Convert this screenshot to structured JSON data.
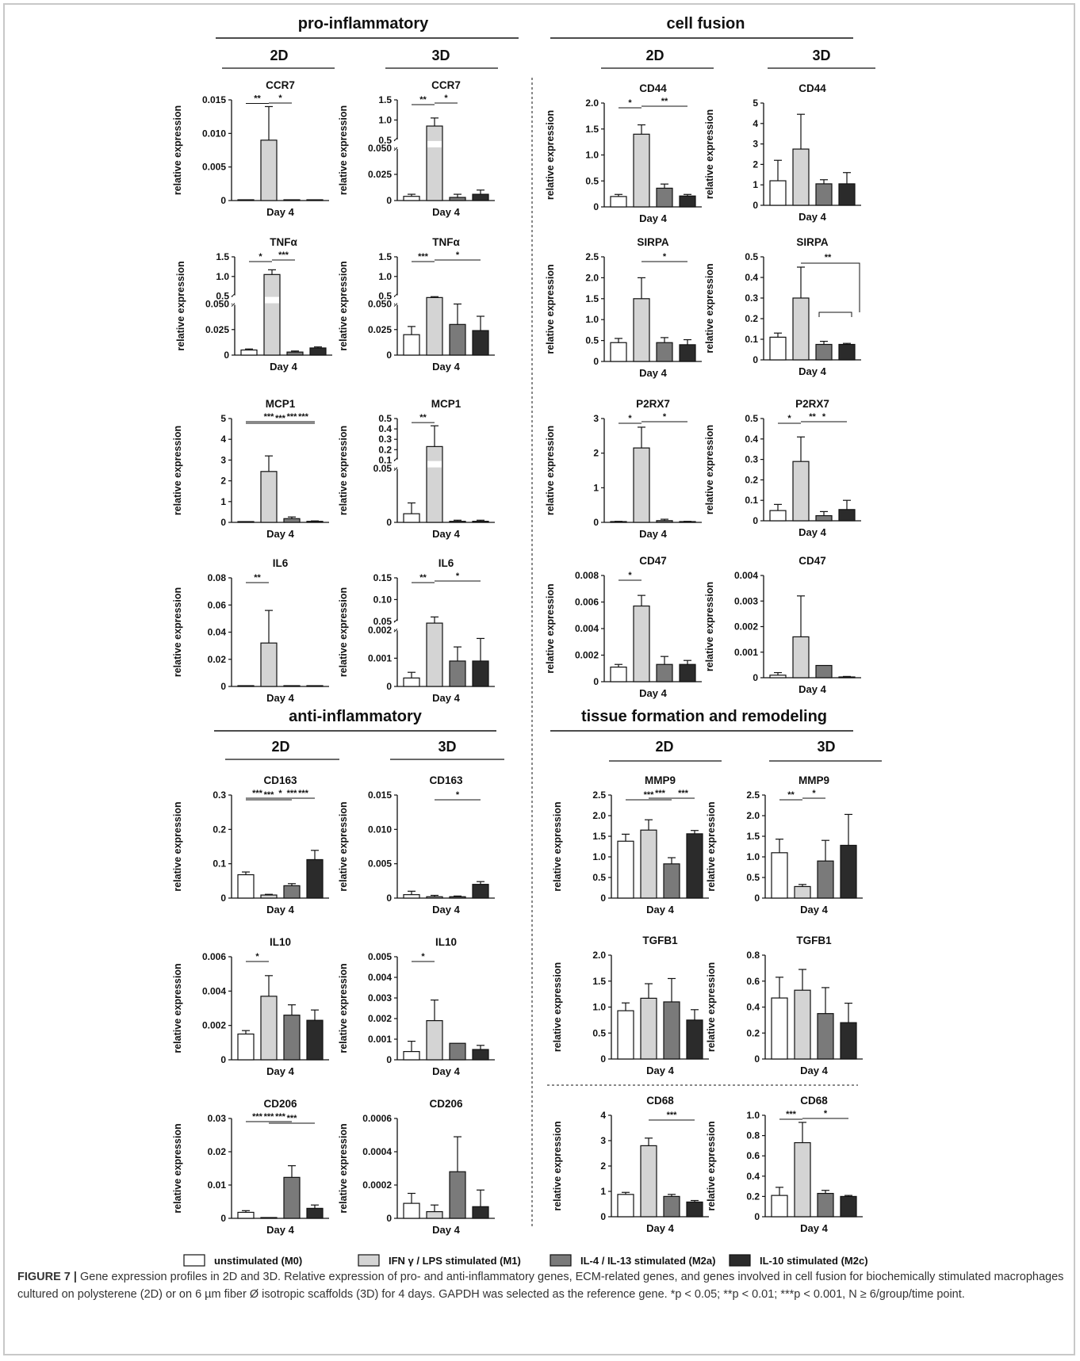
{
  "figure": {
    "colors": {
      "M0": "#ffffff",
      "M1": "#d4d4d4",
      "M2a": "#7a7a7a",
      "M2c": "#2b2b2b",
      "ink": "#111111"
    },
    "sections": [
      {
        "title": "pro-inflammatory",
        "subs": [
          "2D",
          "3D"
        ]
      },
      {
        "title": "cell fusion",
        "subs": [
          "2D",
          "3D"
        ]
      },
      {
        "title": "anti-inflammatory",
        "subs": [
          "2D",
          "3D"
        ]
      },
      {
        "title": "tissue formation and remodeling",
        "subs": [
          "2D",
          "3D"
        ]
      }
    ],
    "legend": [
      {
        "key": "M0",
        "label": "unstimulated (M0)"
      },
      {
        "key": "M1",
        "label": "IFN  γ / LPS stimulated (M1)"
      },
      {
        "key": "M2a",
        "label": "IL-4 / IL-13 stimulated (M2a)"
      },
      {
        "key": "M2c",
        "label": "IL-10 stimulated (M2c)"
      }
    ],
    "caption": {
      "label": "FIGURE 7 |",
      "text": " Gene expression profiles in 2D and 3D. Relative expression of pro- and anti-inflammatory genes, ECM-related genes, and genes involved in cell fusion for biochemically stimulated macrophages cultured on polysterene (2D) or on 6 µm fiber Ø isotropic scaffolds (3D) for 4 days. GAPDH was selected as the reference gene. *p < 0.05; **p < 0.01; ***p < 0.001, N ≥ 6/group/time point."
    }
  },
  "chart_data": [
    {
      "type": "bar",
      "title": "CCR7",
      "section": "pro-inflammatory",
      "culture": "2D",
      "xlabel": "Day 4",
      "ylabel": "relative expression",
      "yticks": [
        "0",
        "0.005",
        "0.010",
        "0.015"
      ],
      "ylim": [
        0,
        0.015
      ],
      "values": [
        0,
        0.009,
        0,
        0
      ],
      "errors": [
        0,
        0.005,
        0,
        0
      ],
      "sig": [
        {
          "a": 0,
          "b": 1,
          "label": "**"
        },
        {
          "a": 1,
          "b": 2,
          "label": "*"
        }
      ]
    },
    {
      "type": "bar",
      "title": "CCR7",
      "section": "pro-inflammatory",
      "culture": "3D",
      "xlabel": "Day 4",
      "ylabel": "relative expression",
      "yticks": [
        "0",
        "0.025",
        "0.050",
        "0.5",
        "1.0",
        "1.5"
      ],
      "broken": true,
      "values": [
        0.004,
        0.85,
        0.003,
        0.006
      ],
      "errors": [
        0.002,
        0.2,
        0.003,
        0.004
      ],
      "sig": [
        {
          "a": 0,
          "b": 1,
          "label": "**"
        },
        {
          "a": 1,
          "b": 2,
          "label": "*"
        }
      ]
    },
    {
      "type": "bar",
      "title": "CD44",
      "section": "cell fusion",
      "culture": "2D",
      "xlabel": "Day 4",
      "ylabel": "relative expression",
      "yticks": [
        "0",
        "0.5",
        "1.0",
        "1.5",
        "2.0"
      ],
      "ylim": [
        0,
        2.0
      ],
      "values": [
        0.2,
        1.4,
        0.36,
        0.21
      ],
      "errors": [
        0.04,
        0.18,
        0.08,
        0.03
      ],
      "sig": [
        {
          "a": 0,
          "b": 1,
          "label": "*"
        },
        {
          "a": 1,
          "b": 3,
          "label": "**"
        }
      ]
    },
    {
      "type": "bar",
      "title": "CD44",
      "section": "cell fusion",
      "culture": "3D",
      "xlabel": "Day 4",
      "ylabel": "relative expression",
      "yticks": [
        "0",
        "1",
        "2",
        "3",
        "4",
        "5"
      ],
      "ylim": [
        0,
        5
      ],
      "values": [
        1.2,
        2.75,
        1.05,
        1.05
      ],
      "errors": [
        1.0,
        1.7,
        0.2,
        0.55
      ],
      "sig": []
    },
    {
      "type": "bar",
      "title": "TNFα",
      "section": "pro-inflammatory",
      "culture": "2D",
      "xlabel": "Day 4",
      "ylabel": "relative expression",
      "yticks": [
        "0",
        "0.025",
        "0.050",
        "0.5",
        "1.0",
        "1.5"
      ],
      "broken": true,
      "values": [
        0.005,
        1.05,
        0.003,
        0.007
      ],
      "errors": [
        0.001,
        0.12,
        0.001,
        0.001
      ],
      "sig": [
        {
          "a": 0,
          "b": 1,
          "label": "*"
        },
        {
          "a": 1,
          "b": 2,
          "label": "***"
        }
      ]
    },
    {
      "type": "bar",
      "title": "TNFα",
      "section": "pro-inflammatory",
      "culture": "3D",
      "xlabel": "Day 4",
      "ylabel": "relative expression",
      "yticks": [
        "0",
        "0.025",
        "0.050",
        "0.5",
        "1.0",
        "1.5"
      ],
      "broken": true,
      "values": [
        0.02,
        0.42,
        0.03,
        0.024
      ],
      "errors": [
        0.008,
        0.05,
        0.02,
        0.014
      ],
      "sig": [
        {
          "a": 0,
          "b": 1,
          "label": "***"
        },
        {
          "a": 1,
          "b": 3,
          "label": "*"
        }
      ]
    },
    {
      "type": "bar",
      "title": "SIRPA",
      "section": "cell fusion",
      "culture": "2D",
      "xlabel": "Day 4",
      "ylabel": "relative expression",
      "yticks": [
        "0",
        "0.5",
        "1.0",
        "1.5",
        "2.0",
        "2.5"
      ],
      "ylim": [
        0,
        2.5
      ],
      "values": [
        0.45,
        1.5,
        0.45,
        0.4
      ],
      "errors": [
        0.1,
        0.5,
        0.12,
        0.12
      ],
      "sig": [
        {
          "a": 1,
          "b": 3,
          "label": "*"
        }
      ]
    },
    {
      "type": "bar",
      "title": "SIRPA",
      "section": "cell fusion",
      "culture": "3D",
      "xlabel": "Day 4",
      "ylabel": "relative expression",
      "yticks": [
        "0",
        "0.1",
        "0.2",
        "0.3",
        "0.4",
        "0.5"
      ],
      "ylim": [
        0,
        0.5
      ],
      "values": [
        0.11,
        0.3,
        0.075,
        0.075
      ],
      "errors": [
        0.02,
        0.15,
        0.015,
        0.005
      ],
      "sig": [
        {
          "a": 1,
          "b": 3,
          "label": "**",
          "kind": "group"
        }
      ]
    },
    {
      "type": "bar",
      "title": "MCP1",
      "section": "pro-inflammatory",
      "culture": "2D",
      "xlabel": "Day 4",
      "ylabel": "relative expression",
      "yticks": [
        "0",
        "1",
        "2",
        "3",
        "4",
        "5"
      ],
      "ylim": [
        0,
        5
      ],
      "values": [
        0.01,
        2.45,
        0.18,
        0.05
      ],
      "errors": [
        0.01,
        0.75,
        0.08,
        0.02
      ],
      "sig": [
        {
          "a": 0,
          "b": 3,
          "label": "***"
        },
        {
          "a": 1,
          "b": 3,
          "label": "***"
        },
        {
          "a": 0,
          "b": 2,
          "label": "***"
        },
        {
          "a": 2,
          "b": 3,
          "label": "***"
        }
      ]
    },
    {
      "type": "bar",
      "title": "MCP1",
      "section": "pro-inflammatory",
      "culture": "3D",
      "xlabel": "Day 4",
      "ylabel": "relative expression",
      "yticks": [
        "0",
        "0.05",
        "0.1",
        "0.2",
        "0.3",
        "0.4",
        "0.5"
      ],
      "broken": true,
      "values": [
        0.008,
        0.23,
        0.001,
        0.001
      ],
      "errors": [
        0.01,
        0.2,
        0.001,
        0.001
      ],
      "sig": [
        {
          "a": 0,
          "b": 1,
          "label": "**"
        }
      ]
    },
    {
      "type": "bar",
      "title": "P2RX7",
      "section": "cell fusion",
      "culture": "2D",
      "xlabel": "Day 4",
      "ylabel": "relative expression",
      "yticks": [
        "0",
        "1",
        "2",
        "3"
      ],
      "ylim": [
        0,
        3
      ],
      "values": [
        0.02,
        2.15,
        0.05,
        0.02
      ],
      "errors": [
        0.01,
        0.6,
        0.04,
        0.01
      ],
      "sig": [
        {
          "a": 0,
          "b": 1,
          "label": "*"
        },
        {
          "a": 1,
          "b": 3,
          "label": "*"
        }
      ]
    },
    {
      "type": "bar",
      "title": "P2RX7",
      "section": "cell fusion",
      "culture": "3D",
      "xlabel": "Day 4",
      "ylabel": "relative expression",
      "yticks": [
        "0",
        "0.1",
        "0.2",
        "0.3",
        "0.4",
        "0.5"
      ],
      "ylim": [
        0,
        0.5
      ],
      "values": [
        0.05,
        0.29,
        0.025,
        0.055
      ],
      "errors": [
        0.03,
        0.12,
        0.02,
        0.045
      ],
      "sig": [
        {
          "a": 0,
          "b": 1,
          "label": "*"
        },
        {
          "a": 1,
          "b": 2,
          "label": "**"
        },
        {
          "a": 1,
          "b": 3,
          "label": "*"
        }
      ]
    },
    {
      "type": "bar",
      "title": "IL6",
      "section": "pro-inflammatory",
      "culture": "2D",
      "xlabel": "Day 4",
      "ylabel": "relative expression",
      "yticks": [
        "0",
        "0.02",
        "0.04",
        "0.06",
        "0.08"
      ],
      "ylim": [
        0,
        0.08
      ],
      "values": [
        0,
        0.032,
        0,
        0
      ],
      "errors": [
        0,
        0.024,
        0,
        0
      ],
      "sig": [
        {
          "a": 0,
          "b": 1,
          "label": "**"
        }
      ]
    },
    {
      "type": "bar",
      "title": "IL6",
      "section": "pro-inflammatory",
      "culture": "3D",
      "xlabel": "Day 4",
      "ylabel": "relative expression",
      "yticks": [
        "0",
        "0.001",
        "0.002",
        "0.05",
        "0.10",
        "0.15"
      ],
      "broken": true,
      "values": [
        0.0003,
        0.04,
        0.0009,
        0.0009
      ],
      "errors": [
        0.0002,
        0.02,
        0.0005,
        0.0008
      ],
      "sig": [
        {
          "a": 0,
          "b": 1,
          "label": "**"
        },
        {
          "a": 1,
          "b": 3,
          "label": "*"
        }
      ]
    },
    {
      "type": "bar",
      "title": "CD47",
      "section": "cell fusion",
      "culture": "2D",
      "xlabel": "Day 4",
      "ylabel": "relative expression",
      "yticks": [
        "0",
        "0.002",
        "0.004",
        "0.006",
        "0.008"
      ],
      "ylim": [
        0,
        0.008
      ],
      "values": [
        0.0011,
        0.0057,
        0.0013,
        0.0013
      ],
      "errors": [
        0.0002,
        0.0008,
        0.0006,
        0.0003
      ],
      "sig": [
        {
          "a": 0,
          "b": 1,
          "label": "*"
        }
      ]
    },
    {
      "type": "bar",
      "title": "CD47",
      "section": "cell fusion",
      "culture": "3D",
      "xlabel": "Day 4",
      "ylabel": "relative expression",
      "yticks": [
        "0",
        "0.001",
        "0.002",
        "0.003",
        "0.004"
      ],
      "ylim": [
        0,
        0.004
      ],
      "values": [
        0.0001,
        0.0016,
        0.00048,
        3e-05
      ],
      "errors": [
        0.0001,
        0.0016,
        0,
        2e-05
      ],
      "sig": []
    },
    {
      "type": "bar",
      "title": "CD163",
      "section": "anti-inflammatory",
      "culture": "2D",
      "xlabel": "Day 4",
      "ylabel": "relative expression",
      "yticks": [
        "0",
        "0.1",
        "0.2",
        "0.3"
      ],
      "ylim": [
        0,
        0.3
      ],
      "values": [
        0.068,
        0.009,
        0.036,
        0.112
      ],
      "errors": [
        0.008,
        0.002,
        0.006,
        0.027
      ],
      "sig": [
        {
          "a": 0,
          "b": 2,
          "label": "***"
        },
        {
          "a": 0,
          "b": 3,
          "label": "*"
        },
        {
          "a": 1,
          "b": 3,
          "label": "***"
        },
        {
          "a": 2,
          "b": 3,
          "label": "***"
        },
        {
          "a": 0,
          "b": 1,
          "label": "***"
        }
      ]
    },
    {
      "type": "bar",
      "title": "CD163",
      "section": "anti-inflammatory",
      "culture": "3D",
      "xlabel": "Day 4",
      "ylabel": "relative expression",
      "yticks": [
        "0",
        "0.005",
        "0.010",
        "0.015"
      ],
      "ylim": [
        0,
        0.015
      ],
      "values": [
        0.0005,
        0.0002,
        0.0002,
        0.002
      ],
      "errors": [
        0.0005,
        0.0002,
        0.0001,
        0.0004
      ],
      "sig": [
        {
          "a": 1,
          "b": 3,
          "label": "*"
        }
      ]
    },
    {
      "type": "bar",
      "title": "MMP9",
      "section": "tissue formation and remodeling",
      "culture": "2D",
      "xlabel": "Day 4",
      "ylabel": "relative expression",
      "yticks": [
        "0",
        "0.5",
        "1.0",
        "1.5",
        "2.0",
        "2.5"
      ],
      "ylim": [
        0,
        2.5
      ],
      "values": [
        1.38,
        1.65,
        0.83,
        1.56
      ],
      "errors": [
        0.17,
        0.25,
        0.15,
        0.08
      ],
      "sig": [
        {
          "a": 0,
          "b": 2,
          "label": "***"
        },
        {
          "a": 1,
          "b": 2,
          "label": "***"
        },
        {
          "a": 2,
          "b": 3,
          "label": "***"
        }
      ]
    },
    {
      "type": "bar",
      "title": "MMP9",
      "section": "tissue formation and remodeling",
      "culture": "3D",
      "xlabel": "Day 4",
      "ylabel": "relative expression",
      "yticks": [
        "0",
        "0.5",
        "1.0",
        "1.5",
        "2.0",
        "2.5"
      ],
      "ylim": [
        0,
        2.5
      ],
      "values": [
        1.1,
        0.28,
        0.9,
        1.28
      ],
      "errors": [
        0.33,
        0.05,
        0.5,
        0.75
      ],
      "sig": [
        {
          "a": 0,
          "b": 1,
          "label": "**"
        },
        {
          "a": 1,
          "b": 2,
          "label": "*"
        }
      ]
    },
    {
      "type": "bar",
      "title": "IL10",
      "section": "anti-inflammatory",
      "culture": "2D",
      "xlabel": "Day 4",
      "ylabel": "relative expression",
      "yticks": [
        "0",
        "0.002",
        "0.004",
        "0.006"
      ],
      "ylim": [
        0,
        0.006
      ],
      "values": [
        0.0015,
        0.0037,
        0.0026,
        0.0023
      ],
      "errors": [
        0.0002,
        0.0012,
        0.0006,
        0.0006
      ],
      "sig": [
        {
          "a": 0,
          "b": 1,
          "label": "*"
        }
      ]
    },
    {
      "type": "bar",
      "title": "IL10",
      "section": "anti-inflammatory",
      "culture": "3D",
      "xlabel": "Day 4",
      "ylabel": "relative expression",
      "yticks": [
        "0",
        "0.001",
        "0.002",
        "0.003",
        "0.004",
        "0.005"
      ],
      "ylim": [
        0,
        0.005
      ],
      "values": [
        0.0004,
        0.0019,
        0.0008,
        0.0005
      ],
      "errors": [
        0.0005,
        0.001,
        0,
        0.0002
      ],
      "sig": [
        {
          "a": 0,
          "b": 1,
          "label": "*"
        }
      ]
    },
    {
      "type": "bar",
      "title": "TGFB1",
      "section": "tissue formation and remodeling",
      "culture": "2D",
      "xlabel": "Day 4",
      "ylabel": "relative expression",
      "yticks": [
        "0",
        "0.5",
        "1.0",
        "1.5",
        "2.0"
      ],
      "ylim": [
        0,
        2.0
      ],
      "values": [
        0.93,
        1.17,
        1.1,
        0.75
      ],
      "errors": [
        0.15,
        0.28,
        0.45,
        0.2
      ],
      "sig": []
    },
    {
      "type": "bar",
      "title": "TGFB1",
      "section": "tissue formation and remodeling",
      "culture": "3D",
      "xlabel": "Day 4",
      "ylabel": "relative expression",
      "yticks": [
        "0",
        "0.2",
        "0.4",
        "0.6",
        "0.8"
      ],
      "ylim": [
        0,
        0.8
      ],
      "values": [
        0.47,
        0.53,
        0.35,
        0.28
      ],
      "errors": [
        0.16,
        0.16,
        0.2,
        0.15
      ],
      "sig": []
    },
    {
      "type": "bar",
      "title": "CD206",
      "section": "anti-inflammatory",
      "culture": "2D",
      "xlabel": "Day 4",
      "ylabel": "relative expression",
      "yticks": [
        "0",
        "0.01",
        "0.02",
        "0.03"
      ],
      "ylim": [
        0,
        0.03
      ],
      "values": [
        0.0018,
        0.0001,
        0.0123,
        0.003
      ],
      "errors": [
        0.0005,
        0.0001,
        0.0035,
        0.001
      ],
      "sig": [
        {
          "a": 1,
          "b": 3,
          "label": "***"
        },
        {
          "a": 1,
          "b": 2,
          "label": "***"
        },
        {
          "a": 0,
          "b": 2,
          "label": "***"
        },
        {
          "a": 0,
          "b": 1,
          "label": "***"
        }
      ]
    },
    {
      "type": "bar",
      "title": "CD206",
      "section": "anti-inflammatory",
      "culture": "3D",
      "xlabel": "Day 4",
      "ylabel": "relative expression",
      "yticks": [
        "0",
        "0.0002",
        "0.0004",
        "0.0006"
      ],
      "ylim": [
        0,
        0.0006
      ],
      "values": [
        9e-05,
        4e-05,
        0.00028,
        7e-05
      ],
      "errors": [
        6e-05,
        4e-05,
        0.00021,
        0.0001
      ],
      "sig": []
    },
    {
      "type": "bar",
      "title": "CD68",
      "section": "tissue formation and remodeling",
      "culture": "2D",
      "xlabel": "Day 4",
      "ylabel": "relative expression",
      "yticks": [
        "0",
        "1",
        "2",
        "3",
        "4"
      ],
      "ylim": [
        0,
        4
      ],
      "values": [
        0.88,
        2.8,
        0.8,
        0.58
      ],
      "errors": [
        0.08,
        0.3,
        0.08,
        0.06
      ],
      "sig": [
        {
          "a": 1,
          "b": 3,
          "label": "***"
        }
      ]
    },
    {
      "type": "bar",
      "title": "CD68",
      "section": "tissue formation and remodeling",
      "culture": "3D",
      "xlabel": "Day 4",
      "ylabel": "relative expression",
      "yticks": [
        "0",
        "0.2",
        "0.4",
        "0.6",
        "0.8",
        "1.0"
      ],
      "ylim": [
        0,
        1.0
      ],
      "values": [
        0.21,
        0.73,
        0.23,
        0.2
      ],
      "errors": [
        0.08,
        0.2,
        0.03,
        0.01
      ],
      "sig": [
        {
          "a": 0,
          "b": 1,
          "label": "***"
        },
        {
          "a": 1,
          "b": 3,
          "label": "*"
        }
      ]
    }
  ]
}
